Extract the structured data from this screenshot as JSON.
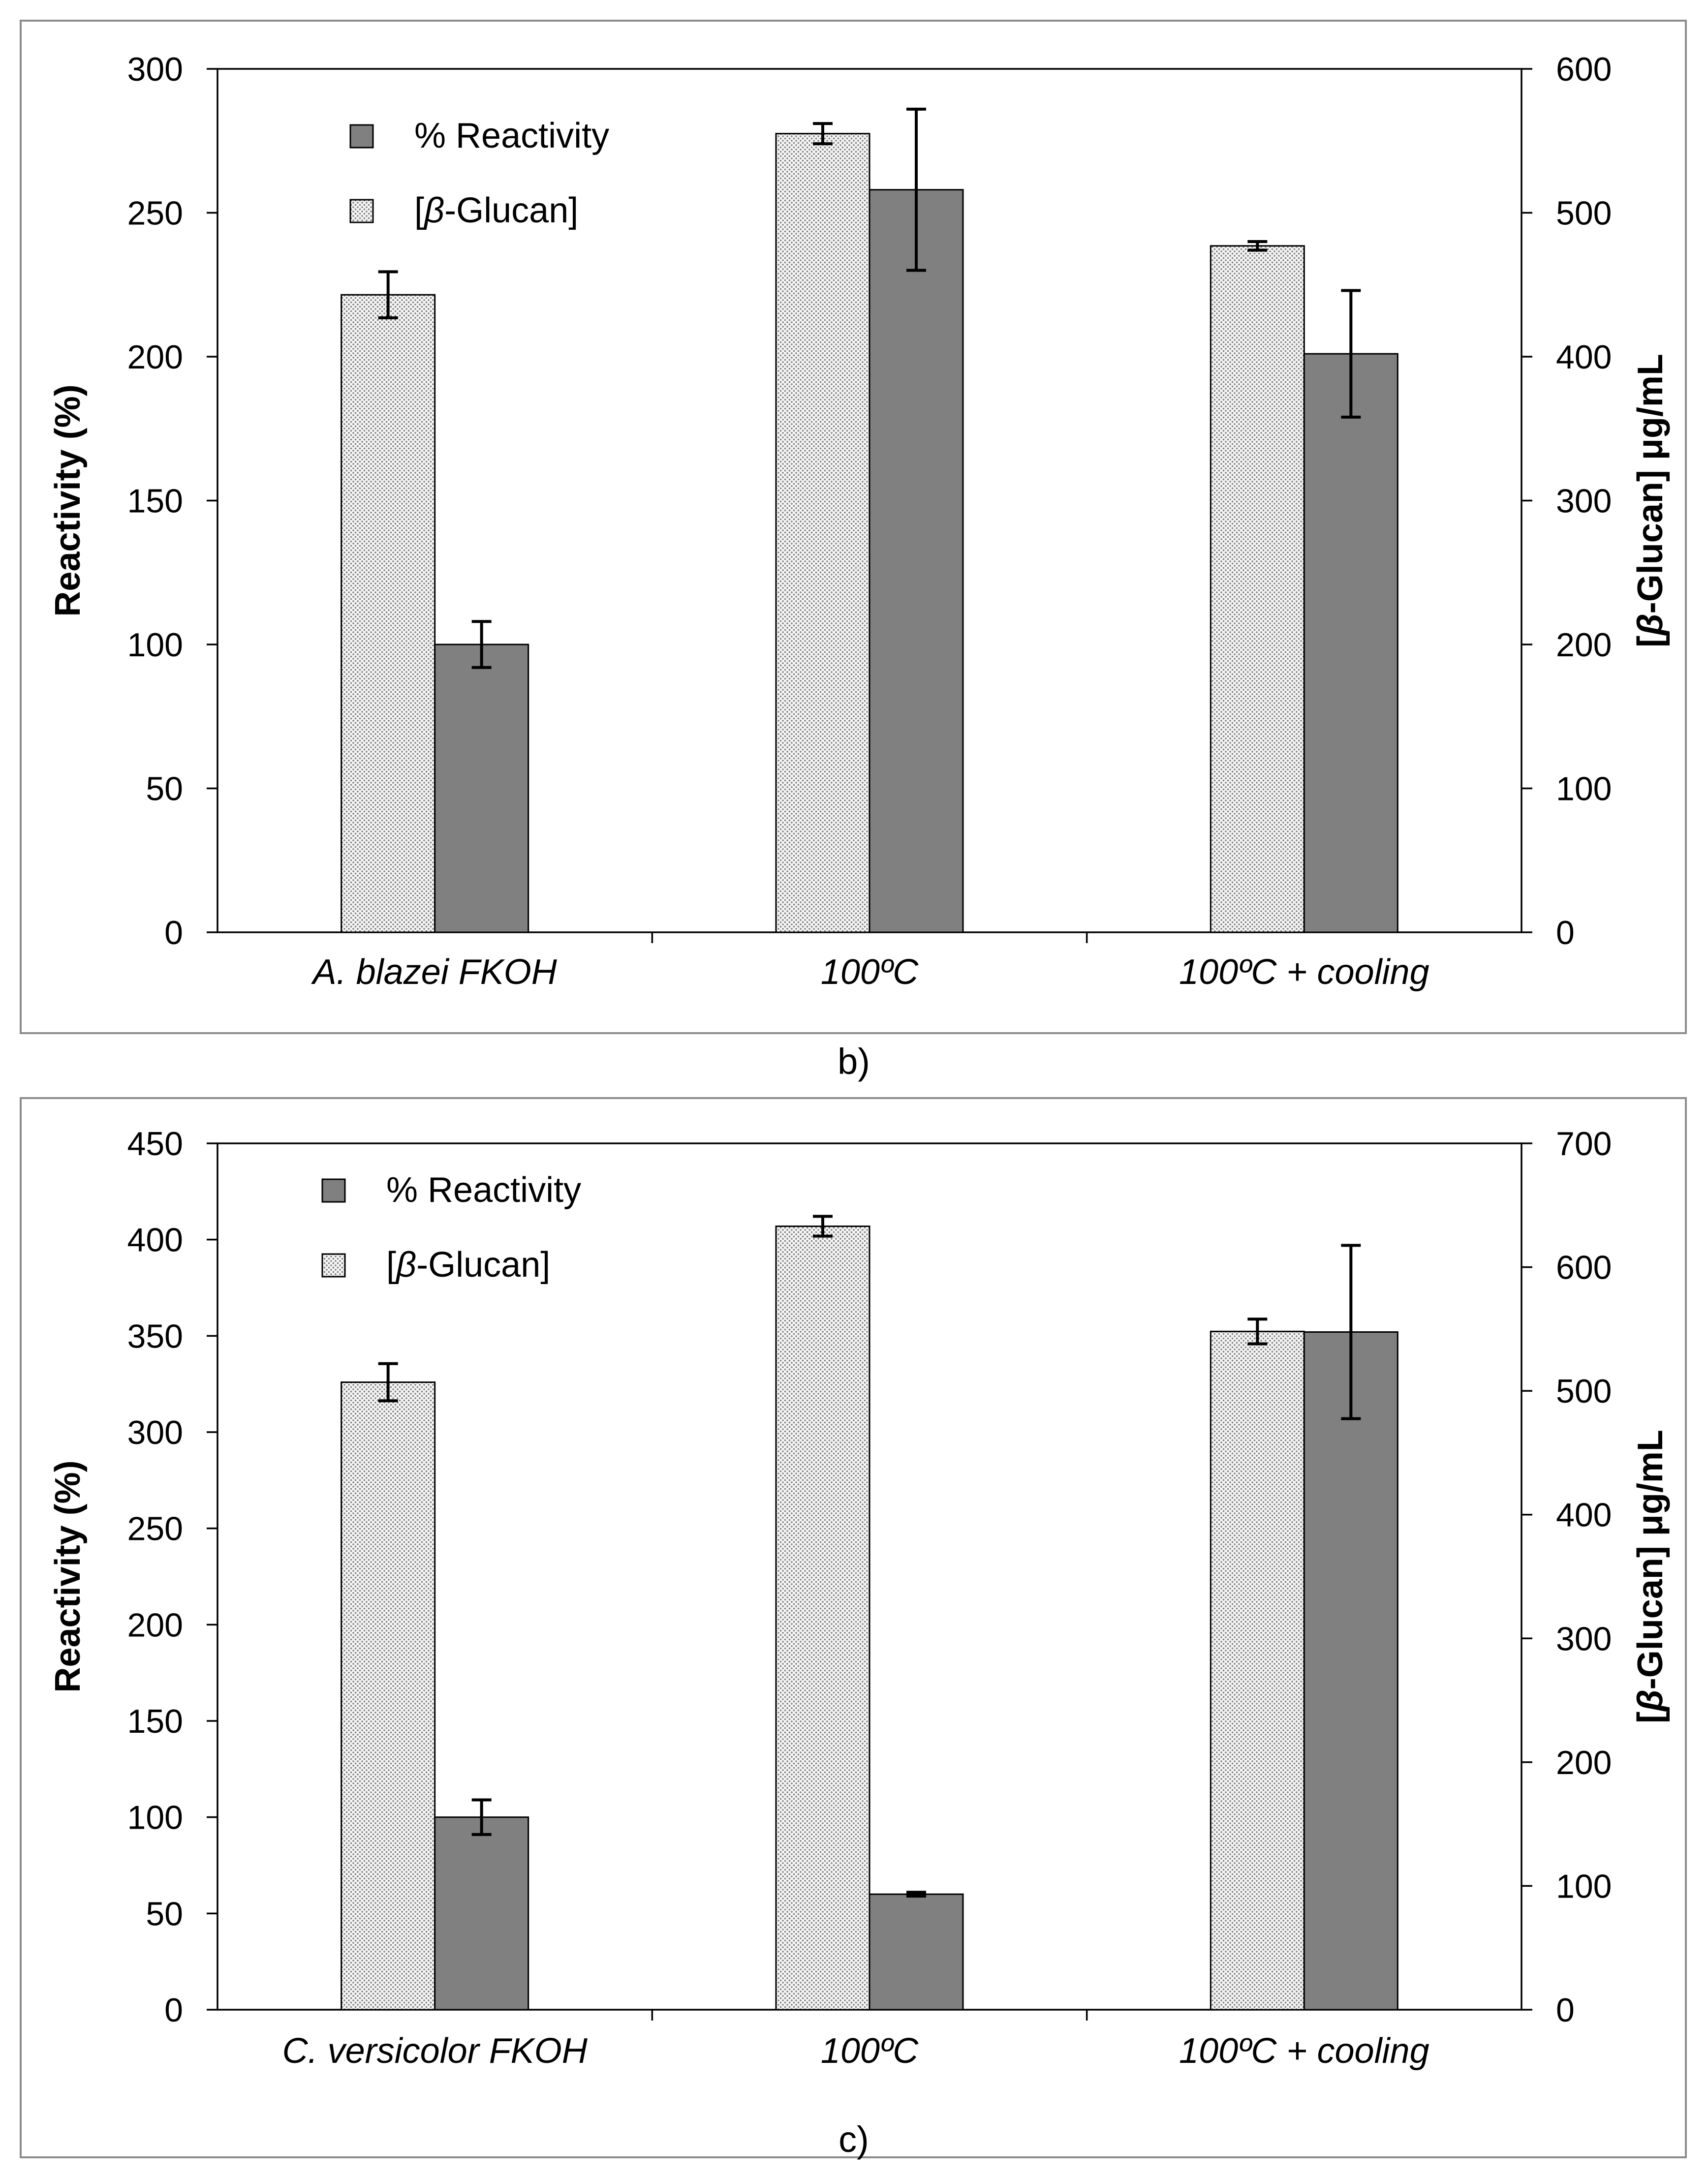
{
  "chart_data": [
    {
      "type": "bar",
      "panel_label": "b)",
      "categories": [
        "A. blazei FKOH",
        "100ºC",
        "100ºC + cooling"
      ],
      "ylabel": "Reactivity (%)",
      "y2label": "[β-Glucan] μg/mL",
      "ylim": [
        0,
        300
      ],
      "y2lim": [
        0,
        600
      ],
      "yticks": [
        "0",
        "50",
        "100",
        "150",
        "200",
        "250",
        "300"
      ],
      "y2ticks": [
        "0",
        "100",
        "200",
        "300",
        "400",
        "500",
        "600"
      ],
      "legend_position": "top-left",
      "grid": false,
      "series": [
        {
          "name": "[β-Glucan]",
          "axis": "right",
          "pattern": "dotted",
          "color": "#eeeeee",
          "values": [
            443,
            555,
            477
          ],
          "errors": [
            16,
            7,
            3
          ]
        },
        {
          "name": "% Reactivity",
          "axis": "left",
          "pattern": "solid",
          "color": "#808080",
          "values": [
            100,
            258,
            201
          ],
          "errors": [
            8,
            28,
            22
          ]
        }
      ]
    },
    {
      "type": "bar",
      "panel_label": "c)",
      "categories": [
        "C. versicolor FKOH",
        "100ºC",
        "100ºC + cooling"
      ],
      "ylabel": "Reactivity (%)",
      "y2label": "[β-Glucan] μg/mL",
      "ylim": [
        0,
        450
      ],
      "y2lim": [
        0,
        700
      ],
      "yticks": [
        "0",
        "50",
        "100",
        "150",
        "200",
        "250",
        "300",
        "350",
        "400",
        "450"
      ],
      "y2ticks": [
        "0",
        "100",
        "200",
        "300",
        "400",
        "500",
        "600",
        "700"
      ],
      "legend_position": "top-left",
      "grid": false,
      "series": [
        {
          "name": "[β-Glucan]",
          "axis": "right",
          "pattern": "dotted",
          "color": "#eeeeee",
          "values": [
            507,
            633,
            548
          ],
          "errors": [
            15,
            8,
            10
          ]
        },
        {
          "name": "% Reactivity",
          "axis": "left",
          "pattern": "solid",
          "color": "#808080",
          "values": [
            100,
            60,
            352
          ],
          "errors": [
            9,
            1,
            45
          ]
        }
      ]
    }
  ]
}
